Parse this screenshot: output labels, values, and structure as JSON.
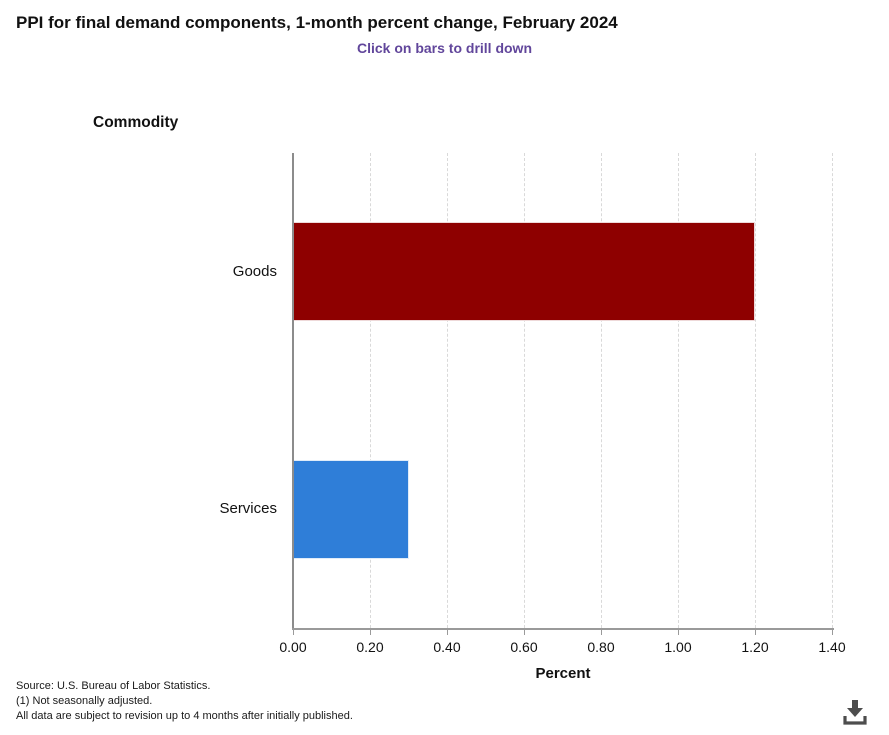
{
  "header": {
    "title": "PPI for final demand components, 1-month percent change, February 2024",
    "subtitle": "Click on bars to drill down",
    "subtitle_color": "#61469b"
  },
  "chart_data": {
    "type": "bar",
    "orientation": "horizontal",
    "title": "PPI for final demand components, 1-month percent change, February 2024",
    "subtitle": "Click on bars to drill down",
    "categories": [
      "Goods",
      "Services"
    ],
    "values": [
      1.2,
      0.3
    ],
    "bar_colors": [
      "#8e0000",
      "#2f7ed8"
    ],
    "xlabel": "Percent",
    "ylabel": "Commodity",
    "xlim": [
      0,
      1.4
    ],
    "xtick_values": [
      0,
      0.2,
      0.4,
      0.6,
      0.8,
      1.0,
      1.2,
      1.4
    ],
    "xtick_labels": [
      "0.00",
      "0.20",
      "0.40",
      "0.60",
      "0.80",
      "1.00",
      "1.20",
      "1.40"
    ],
    "grid": "vertical-dashed",
    "legend": "none"
  },
  "footer": {
    "lines": [
      "Source: U.S. Bureau of Labor Statistics.",
      "(1) Not seasonally adjusted.",
      "All data are subject to revision up to 4 months after initially published."
    ]
  },
  "icons": {
    "download": "download-arrow-into-tray"
  }
}
